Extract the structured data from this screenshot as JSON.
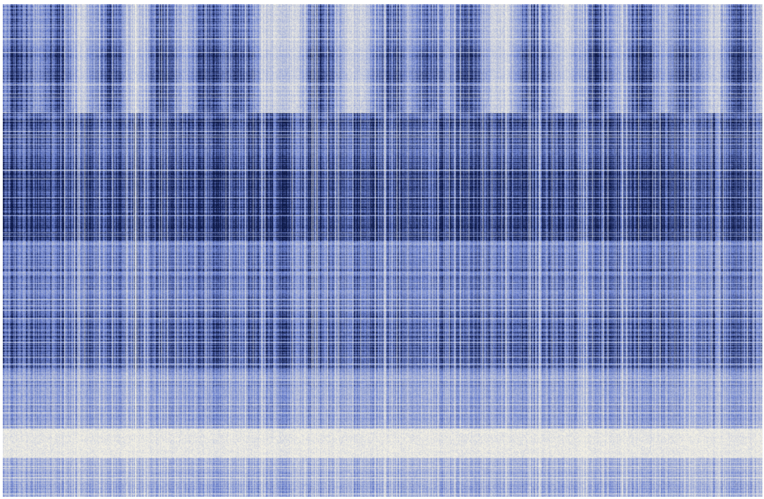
{
  "chart_data": {
    "type": "heatmap",
    "title": "",
    "xlabel": "",
    "ylabel": "",
    "axes_visible": false,
    "legend": "none",
    "colors": {
      "low": "#f4f1e4",
      "mid": "#6f85d2",
      "high": "#0e1a4a"
    },
    "row_bands": [
      {
        "start": 0.0,
        "end": 0.09,
        "density": 0.48,
        "columnar": true
      },
      {
        "start": 0.09,
        "end": 0.22,
        "density": 0.58,
        "columnar": true
      },
      {
        "start": 0.22,
        "end": 0.34,
        "density": 0.72,
        "columnar": false
      },
      {
        "start": 0.34,
        "end": 0.48,
        "density": 0.84,
        "columnar": false
      },
      {
        "start": 0.48,
        "end": 0.5,
        "density": 0.5,
        "columnar": false
      },
      {
        "start": 0.5,
        "end": 0.6,
        "density": 0.55,
        "columnar": false
      },
      {
        "start": 0.6,
        "end": 0.74,
        "density": 0.66,
        "columnar": false
      },
      {
        "start": 0.74,
        "end": 0.86,
        "density": 0.42,
        "columnar": false
      },
      {
        "start": 0.86,
        "end": 0.92,
        "density": 0.06,
        "columnar": false
      },
      {
        "start": 0.92,
        "end": 1.0,
        "density": 0.34,
        "columnar": false
      }
    ],
    "column_peaks": [
      0.02,
      0.07,
      0.14,
      0.21,
      0.27,
      0.31,
      0.42,
      0.51,
      0.56,
      0.61,
      0.7,
      0.78,
      0.84,
      0.9,
      0.97
    ]
  }
}
